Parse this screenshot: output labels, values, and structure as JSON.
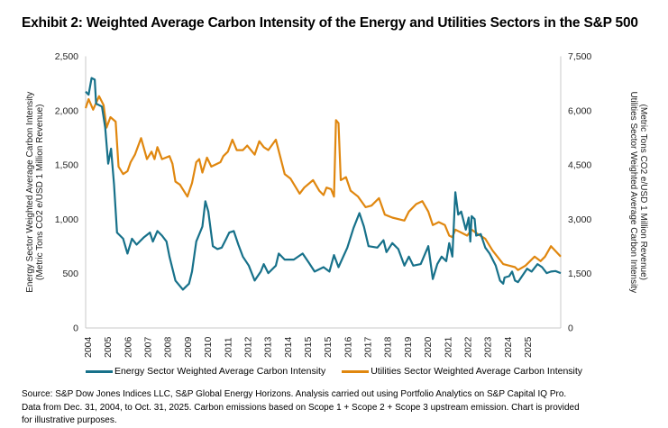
{
  "title": "Exhibit 2: Weighted Average Carbon Intensity of the Energy and Utilities Sectors in the S&P 500",
  "footnote": [
    "Source: S&P Dow Jones Indices LLC, S&P Global Energy Horizons.  Analysis carried out using Portfolio Analytics on S&P Capital IQ Pro.",
    "Data from Dec. 31, 2004, to Oct. 31, 2025.  Carbon emissions based on Scope 1 + Scope 2 + Scope 3 upstream emission.  Chart is provided",
    "for illustrative purposes."
  ],
  "chart_data": {
    "type": "line",
    "title": "Exhibit 2: Weighted Average Carbon Intensity of the Energy and Utilities Sectors in the S&P 500",
    "xlabel": "",
    "x_tick_labels": [
      "2004",
      "2005",
      "2006",
      "2007",
      "2008",
      "2009",
      "2010",
      "2011",
      "2012",
      "2013",
      "2014",
      "2015",
      "2015",
      "2016",
      "2017",
      "2018",
      "2019",
      "2020",
      "2021",
      "2022",
      "2023",
      "2024",
      "2025"
    ],
    "xlim": [
      2004.92,
      2025.83
    ],
    "ylabel_left": [
      "Energy Sector Weighted Average Carbon Intensity",
      "(Metric Tons CO2 e/USD 1 Million Revenue)"
    ],
    "ylabel_right": [
      "Utilities Sector Weighted Average Carbon Intensity",
      "(Metric Tons CO2 e/USD 1 Million Revenue)"
    ],
    "ylim_left": [
      0,
      2500
    ],
    "ylim_right": [
      0,
      7500
    ],
    "yticks_left": [
      "0",
      "500",
      "1,000",
      "1,500",
      "2,000",
      "2,500"
    ],
    "yticks_right": [
      "0",
      "1,500",
      "3,000",
      "4,500",
      "6,000",
      "7,500"
    ],
    "grid": false,
    "legend_position": "bottom",
    "series": [
      {
        "name": "Energy Sector Weighted Average Carbon Intensity",
        "axis": "left",
        "color": "#17718a",
        "x": [
          2004.92,
          2005.05,
          2005.18,
          2005.32,
          2005.38,
          2005.64,
          2005.78,
          2005.91,
          2006.04,
          2006.17,
          2006.3,
          2006.57,
          2006.76,
          2006.96,
          2007.16,
          2007.49,
          2007.75,
          2007.88,
          2008.08,
          2008.28,
          2008.48,
          2008.61,
          2008.87,
          2009.2,
          2009.47,
          2009.6,
          2009.79,
          2010.06,
          2010.19,
          2010.32,
          2010.52,
          2010.72,
          2010.91,
          2011.11,
          2011.24,
          2011.44,
          2011.64,
          2011.84,
          2012.1,
          2012.36,
          2012.63,
          2012.76,
          2012.96,
          2013.29,
          2013.42,
          2013.68,
          2014.08,
          2014.47,
          2014.74,
          2015.0,
          2015.39,
          2015.65,
          2015.85,
          2016.05,
          2016.44,
          2016.71,
          2016.97,
          2017.17,
          2017.37,
          2017.76,
          2018.03,
          2018.16,
          2018.42,
          2018.68,
          2018.95,
          2019.15,
          2019.34,
          2019.67,
          2020.0,
          2020.2,
          2020.4,
          2020.59,
          2020.79,
          2020.92,
          2021.06,
          2021.19,
          2021.32,
          2021.45,
          2021.65,
          2021.78,
          2021.85,
          2021.91,
          2022.04,
          2022.11,
          2022.31,
          2022.51,
          2022.7,
          2022.97,
          2023.16,
          2023.3,
          2023.36,
          2023.56,
          2023.69,
          2023.82,
          2023.95,
          2024.22,
          2024.35,
          2024.55,
          2024.81,
          2025.01,
          2025.21,
          2025.4,
          2025.6,
          2025.83
        ],
        "values": [
          2175,
          2147,
          2300,
          2285,
          2065,
          2037,
          1844,
          1512,
          1650,
          1320,
          878,
          822,
          685,
          822,
          767,
          836,
          878,
          795,
          892,
          850,
          795,
          657,
          436,
          353,
          408,
          519,
          795,
          933,
          1167,
          1071,
          753,
          726,
          740,
          822,
          878,
          892,
          767,
          657,
          574,
          436,
          519,
          588,
          505,
          574,
          685,
          629,
          629,
          685,
          602,
          519,
          560,
          519,
          671,
          560,
          740,
          919,
          1057,
          933,
          753,
          740,
          808,
          698,
          781,
          726,
          574,
          657,
          574,
          588,
          753,
          450,
          588,
          657,
          615,
          781,
          657,
          1250,
          1043,
          1071,
          905,
          1016,
          795,
          1029,
          1002,
          850,
          864,
          740,
          685,
          574,
          436,
          408,
          464,
          477,
          519,
          436,
          422,
          505,
          546,
          519,
          588,
          560,
          505,
          519,
          524,
          505
        ]
      },
      {
        "name": "Utilities Sector Weighted Average Carbon Intensity",
        "axis": "right",
        "color": "#e0870f",
        "x": [
          2004.92,
          2005.05,
          2005.25,
          2005.51,
          2005.71,
          2005.84,
          2006.01,
          2006.24,
          2006.37,
          2006.57,
          2006.76,
          2006.9,
          2007.09,
          2007.36,
          2007.62,
          2007.82,
          2007.95,
          2008.08,
          2008.28,
          2008.61,
          2008.74,
          2008.87,
          2009.07,
          2009.4,
          2009.6,
          2009.79,
          2009.92,
          2010.06,
          2010.26,
          2010.45,
          2010.85,
          2010.98,
          2011.18,
          2011.38,
          2011.57,
          2011.84,
          2012.03,
          2012.36,
          2012.56,
          2012.76,
          2012.96,
          2013.29,
          2013.48,
          2013.68,
          2013.94,
          2014.34,
          2014.54,
          2014.93,
          2015.2,
          2015.39,
          2015.52,
          2015.72,
          2015.85,
          2015.94,
          2016.05,
          2016.15,
          2016.38,
          2016.58,
          2016.91,
          2017.24,
          2017.5,
          2017.83,
          2018.09,
          2018.42,
          2018.95,
          2019.15,
          2019.47,
          2019.74,
          2020.0,
          2020.2,
          2020.46,
          2020.73,
          2020.92,
          2021.06,
          2021.19,
          2021.45,
          2021.71,
          2021.91,
          2022.18,
          2022.51,
          2022.83,
          2023.3,
          2023.56,
          2023.82,
          2023.95,
          2024.28,
          2024.68,
          2024.94,
          2025.14,
          2025.4,
          2025.83
        ],
        "values": [
          6069,
          6318,
          6027,
          6399,
          6153,
          5532,
          5820,
          5697,
          4455,
          4248,
          4329,
          4578,
          4785,
          5241,
          4662,
          4869,
          4662,
          4992,
          4662,
          4743,
          4536,
          4041,
          3957,
          3627,
          3999,
          4578,
          4662,
          4290,
          4704,
          4455,
          4578,
          4743,
          4869,
          5199,
          4911,
          4911,
          5034,
          4785,
          5157,
          4992,
          4911,
          5199,
          4743,
          4248,
          4122,
          3708,
          3876,
          4083,
          3792,
          3669,
          3876,
          3834,
          3627,
          5739,
          5655,
          4083,
          4164,
          3792,
          3627,
          3336,
          3378,
          3585,
          3129,
          3048,
          2964,
          3213,
          3420,
          3501,
          3213,
          2841,
          2922,
          2841,
          2550,
          2508,
          2715,
          2634,
          2550,
          2715,
          2592,
          2466,
          2136,
          1764,
          1722,
          1680,
          1599,
          1722,
          1971,
          1845,
          1971,
          2259,
          1971
        ]
      }
    ]
  }
}
